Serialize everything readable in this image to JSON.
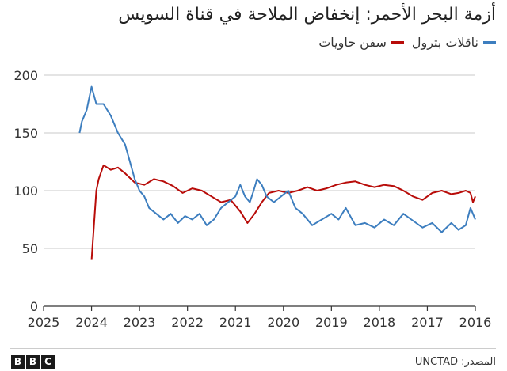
{
  "title": "أزمة البحر الأحمر: إنخفاض الملاحة في قناة السويس",
  "source": "المصدر: UNCTAD",
  "brand": [
    "B",
    "B",
    "C"
  ],
  "chart_data": {
    "type": "line",
    "title": "أزمة البحر الأحمر: إنخفاض الملاحة في قناة السويس",
    "xlabel": "",
    "ylabel": "",
    "x_direction": "right-to-left",
    "xlim": [
      2016,
      2025
    ],
    "ylim": [
      0,
      200
    ],
    "x_ticks": [
      "2025",
      "2024",
      "2023",
      "2022",
      "2021",
      "2020",
      "2019",
      "2018",
      "2017",
      "2016"
    ],
    "y_ticks": [
      "0",
      "50",
      "100",
      "150",
      "200"
    ],
    "grid": true,
    "legend_position": "top-right",
    "series": [
      {
        "name": "ناقلات بترول",
        "color": "#3d7ebf",
        "x": [
          2016.0,
          2016.1,
          2016.2,
          2016.35,
          2016.5,
          2016.7,
          2016.9,
          2017.1,
          2017.3,
          2017.5,
          2017.7,
          2017.9,
          2018.1,
          2018.3,
          2018.5,
          2018.7,
          2018.85,
          2019.0,
          2019.2,
          2019.4,
          2019.6,
          2019.75,
          2019.9,
          2020.05,
          2020.2,
          2020.35,
          2020.45,
          2020.55,
          2020.62,
          2020.7,
          2020.8,
          2020.9,
          2021.0,
          2021.15,
          2021.3,
          2021.45,
          2021.6,
          2021.75,
          2021.9,
          2022.05,
          2022.2,
          2022.35,
          2022.5,
          2022.65,
          2022.8,
          2022.9,
          2023.0,
          2023.1,
          2023.2,
          2023.3,
          2023.45,
          2023.6,
          2023.75,
          2023.9,
          2024.0,
          2024.05,
          2024.1,
          2024.15,
          2024.2,
          2024.25
        ],
        "values": [
          75,
          85,
          70,
          66,
          72,
          64,
          72,
          68,
          74,
          80,
          70,
          75,
          68,
          72,
          70,
          85,
          75,
          80,
          75,
          70,
          80,
          85,
          100,
          95,
          90,
          95,
          105,
          110,
          100,
          90,
          95,
          105,
          95,
          90,
          85,
          75,
          70,
          80,
          75,
          78,
          72,
          80,
          75,
          80,
          85,
          95,
          100,
          110,
          125,
          140,
          150,
          165,
          175,
          175,
          190,
          180,
          170,
          165,
          160,
          150
        ]
      },
      {
        "name": "سفن حاويات",
        "color": "#b80c09",
        "x": [
          2016.0,
          2016.05,
          2016.1,
          2016.2,
          2016.35,
          2016.5,
          2016.7,
          2016.9,
          2017.1,
          2017.3,
          2017.5,
          2017.7,
          2017.9,
          2018.1,
          2018.3,
          2018.5,
          2018.7,
          2018.9,
          2019.1,
          2019.3,
          2019.5,
          2019.7,
          2019.9,
          2020.1,
          2020.3,
          2020.45,
          2020.6,
          2020.75,
          2020.9,
          2021.1,
          2021.3,
          2021.5,
          2021.7,
          2021.9,
          2022.1,
          2022.3,
          2022.5,
          2022.7,
          2022.9,
          2023.1,
          2023.3,
          2023.45,
          2023.6,
          2023.75,
          2023.85,
          2023.9,
          2023.95,
          2024.0
        ],
        "values": [
          95,
          90,
          98,
          100,
          98,
          97,
          100,
          98,
          92,
          95,
          100,
          104,
          105,
          103,
          105,
          108,
          107,
          105,
          102,
          100,
          103,
          100,
          98,
          100,
          98,
          90,
          80,
          72,
          82,
          92,
          90,
          95,
          100,
          102,
          98,
          104,
          108,
          110,
          105,
          107,
          115,
          120,
          118,
          122,
          110,
          100,
          70,
          40
        ]
      }
    ]
  }
}
